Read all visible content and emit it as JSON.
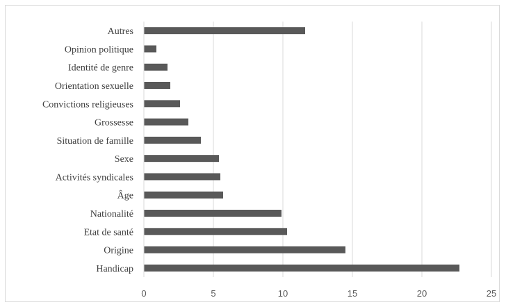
{
  "chart_data": {
    "type": "bar",
    "orientation": "horizontal",
    "categories": [
      "Autres",
      "Opinion politique",
      "Identité de genre",
      "Orientation sexuelle",
      "Convictions religieuses",
      "Grossesse",
      "Situation de famille",
      "Sexe",
      "Activités syndicales",
      "Âge",
      "Nationalité",
      "Etat de santé",
      "Origine",
      "Handicap"
    ],
    "values": [
      11.6,
      0.9,
      1.7,
      1.9,
      2.6,
      3.2,
      4.1,
      5.4,
      5.5,
      5.7,
      9.9,
      10.3,
      14.5,
      22.7
    ],
    "xlim": [
      0,
      25
    ],
    "xticks": [
      "0",
      "5",
      "10",
      "15",
      "20",
      "25"
    ],
    "grid": "vertical",
    "bar_color": "#595959",
    "grid_color": "#d9d9d9"
  }
}
